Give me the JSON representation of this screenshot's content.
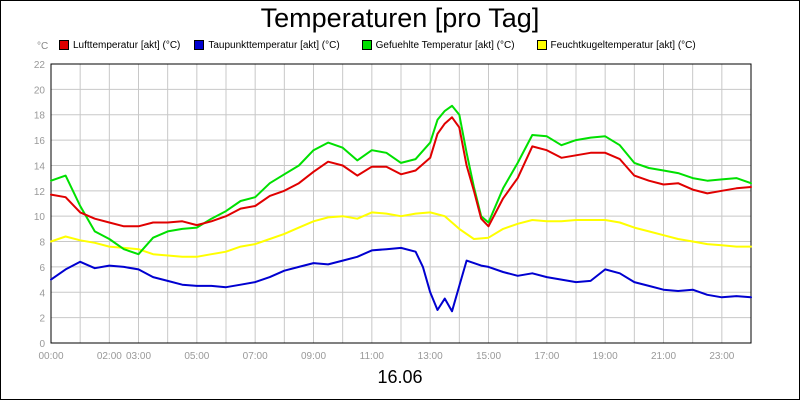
{
  "chart_data": {
    "type": "line",
    "title": "Temperaturen [pro Tag]",
    "xlabel": "16.06",
    "ylabel": "°C",
    "ylim": [
      0,
      22
    ],
    "xlim": [
      0,
      24
    ],
    "yticks": [
      0,
      2,
      4,
      6,
      8,
      10,
      12,
      14,
      16,
      18,
      20,
      22
    ],
    "xticks": [
      {
        "hour": 0,
        "label": "00:00"
      },
      {
        "hour": 2,
        "label": "02:00"
      },
      {
        "hour": 3,
        "label": "03:00"
      },
      {
        "hour": 5,
        "label": "05:00"
      },
      {
        "hour": 7,
        "label": "07:00"
      },
      {
        "hour": 9,
        "label": "09:00"
      },
      {
        "hour": 11,
        "label": "11:00"
      },
      {
        "hour": 13,
        "label": "13:00"
      },
      {
        "hour": 15,
        "label": "15:00"
      },
      {
        "hour": 17,
        "label": "17:00"
      },
      {
        "hour": 19,
        "label": "19:00"
      },
      {
        "hour": 21,
        "label": "21:00"
      },
      {
        "hour": 23,
        "label": "23:00"
      }
    ],
    "grid": true,
    "legend_position": "top",
    "series": [
      {
        "name": "Lufttemperatur [akt] (°C)",
        "color": "#e00000",
        "x": [
          0,
          0.5,
          1,
          1.5,
          2,
          2.5,
          3,
          3.5,
          4,
          4.5,
          5,
          5.5,
          6,
          6.5,
          7,
          7.5,
          8,
          8.5,
          9,
          9.5,
          10,
          10.5,
          11,
          11.5,
          12,
          12.5,
          13,
          13.25,
          13.5,
          13.75,
          14,
          14.25,
          14.5,
          14.75,
          15,
          15.5,
          16,
          16.5,
          17,
          17.5,
          18,
          18.5,
          19,
          19.5,
          20,
          20.5,
          21,
          21.5,
          22,
          22.5,
          23,
          23.5,
          24
        ],
        "y": [
          11.7,
          11.5,
          10.3,
          9.8,
          9.5,
          9.2,
          9.2,
          9.5,
          9.5,
          9.6,
          9.3,
          9.6,
          10.0,
          10.6,
          10.8,
          11.6,
          12.0,
          12.6,
          13.5,
          14.3,
          14.0,
          13.2,
          13.9,
          13.9,
          13.3,
          13.6,
          14.6,
          16.5,
          17.3,
          17.8,
          17.0,
          14.0,
          12.0,
          9.8,
          9.2,
          11.4,
          13.0,
          15.5,
          15.2,
          14.6,
          14.8,
          15.0,
          15.0,
          14.5,
          13.2,
          12.8,
          12.5,
          12.6,
          12.1,
          11.8,
          12.0,
          12.2,
          12.3
        ]
      },
      {
        "name": "Taupunkttemperatur [akt] (°C)",
        "color": "#0000d0",
        "x": [
          0,
          0.5,
          1,
          1.5,
          2,
          2.5,
          3,
          3.5,
          4,
          4.5,
          5,
          5.5,
          6,
          6.5,
          7,
          7.5,
          8,
          8.5,
          9,
          9.5,
          10,
          10.5,
          11,
          11.5,
          12,
          12.5,
          12.75,
          13,
          13.25,
          13.5,
          13.75,
          14,
          14.25,
          14.5,
          14.75,
          15,
          15.5,
          16,
          16.5,
          17,
          17.5,
          18,
          18.5,
          19,
          19.5,
          20,
          20.5,
          21,
          21.5,
          22,
          22.5,
          23,
          23.5,
          24
        ],
        "y": [
          5.0,
          5.8,
          6.4,
          5.9,
          6.1,
          6.0,
          5.8,
          5.2,
          4.9,
          4.6,
          4.5,
          4.5,
          4.4,
          4.6,
          4.8,
          5.2,
          5.7,
          6.0,
          6.3,
          6.2,
          6.5,
          6.8,
          7.3,
          7.4,
          7.5,
          7.2,
          6.0,
          4.0,
          2.6,
          3.5,
          2.5,
          4.5,
          6.5,
          6.3,
          6.1,
          6.0,
          5.6,
          5.3,
          5.5,
          5.2,
          5.0,
          4.8,
          4.9,
          5.8,
          5.5,
          4.8,
          4.5,
          4.2,
          4.1,
          4.2,
          3.8,
          3.6,
          3.7,
          3.6
        ]
      },
      {
        "name": "Gefuehlte Temperatur [akt] (°C)",
        "color": "#00e000",
        "x": [
          0,
          0.5,
          1,
          1.5,
          2,
          2.5,
          3,
          3.5,
          4,
          4.5,
          5,
          5.5,
          6,
          6.5,
          7,
          7.5,
          8,
          8.5,
          9,
          9.5,
          10,
          10.5,
          11,
          11.5,
          12,
          12.5,
          13,
          13.25,
          13.5,
          13.75,
          14,
          14.25,
          14.5,
          14.75,
          15,
          15.5,
          16,
          16.5,
          17,
          17.5,
          18,
          18.5,
          19,
          19.5,
          20,
          20.5,
          21,
          21.5,
          22,
          22.5,
          23,
          23.5,
          24
        ],
        "y": [
          12.8,
          13.2,
          10.8,
          8.8,
          8.2,
          7.4,
          7.0,
          8.3,
          8.8,
          9.0,
          9.1,
          9.8,
          10.4,
          11.2,
          11.5,
          12.6,
          13.3,
          14.0,
          15.2,
          15.8,
          15.4,
          14.4,
          15.2,
          15.0,
          14.2,
          14.5,
          15.8,
          17.6,
          18.3,
          18.7,
          18.0,
          15.0,
          12.3,
          10.0,
          9.5,
          12.2,
          14.2,
          16.4,
          16.3,
          15.6,
          16.0,
          16.2,
          16.3,
          15.6,
          14.2,
          13.8,
          13.6,
          13.4,
          13.0,
          12.8,
          12.9,
          13.0,
          12.6
        ]
      },
      {
        "name": "Feuchtkugeltemperatur [akt] (°C)",
        "color": "#ffff00",
        "x": [
          0,
          0.5,
          1,
          1.5,
          2,
          2.5,
          3,
          3.5,
          4,
          4.5,
          5,
          5.5,
          6,
          6.5,
          7,
          7.5,
          8,
          8.5,
          9,
          9.5,
          10,
          10.5,
          11,
          11.5,
          12,
          12.5,
          13,
          13.5,
          14,
          14.5,
          15,
          15.5,
          16,
          16.5,
          17,
          17.5,
          18,
          18.5,
          19,
          19.5,
          20,
          20.5,
          21,
          21.5,
          22,
          22.5,
          23,
          23.5,
          24
        ],
        "y": [
          8.0,
          8.4,
          8.1,
          7.9,
          7.6,
          7.5,
          7.4,
          7.0,
          6.9,
          6.8,
          6.8,
          7.0,
          7.2,
          7.6,
          7.8,
          8.2,
          8.6,
          9.1,
          9.6,
          9.9,
          10.0,
          9.8,
          10.3,
          10.2,
          10.0,
          10.2,
          10.3,
          10.0,
          9.0,
          8.2,
          8.3,
          9.0,
          9.4,
          9.7,
          9.6,
          9.6,
          9.7,
          9.7,
          9.7,
          9.5,
          9.1,
          8.8,
          8.5,
          8.2,
          8.0,
          7.8,
          7.7,
          7.6,
          7.6
        ]
      }
    ]
  }
}
